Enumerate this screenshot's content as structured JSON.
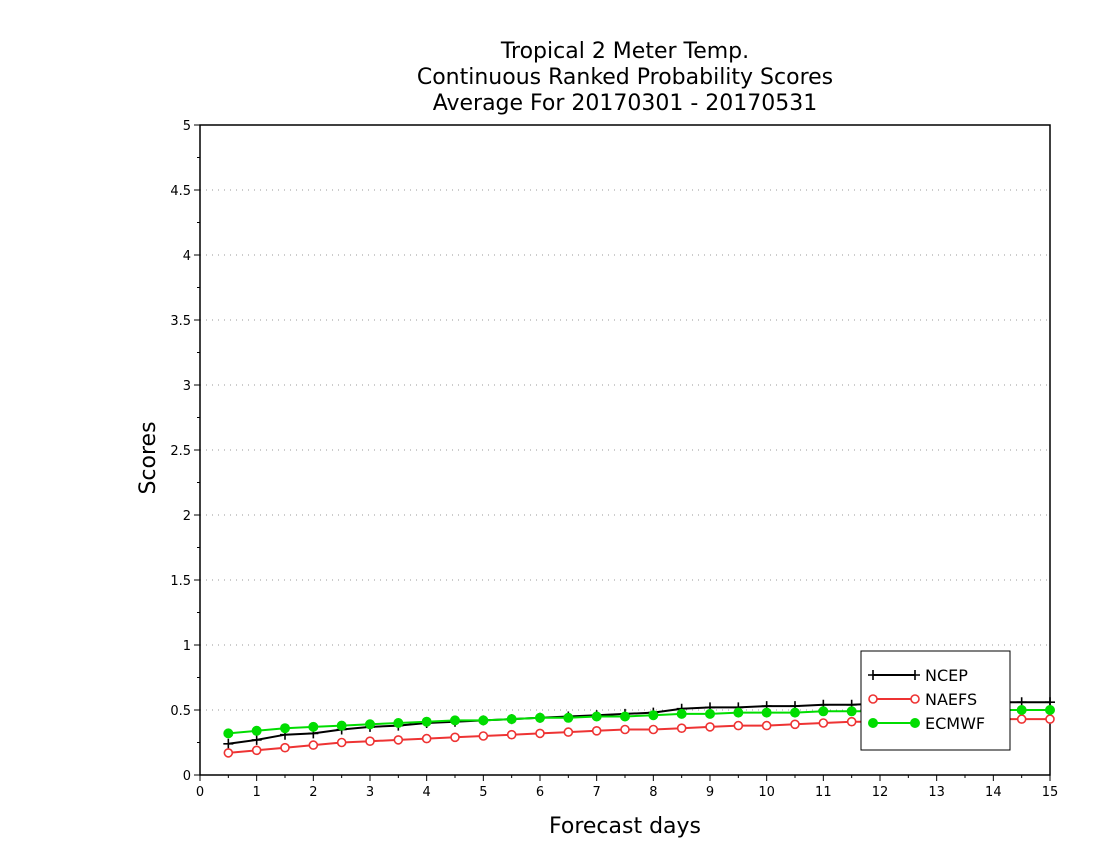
{
  "chart_data": {
    "type": "line",
    "title_lines": [
      "Tropical 2 Meter Temp.",
      "Continuous Ranked Probability Scores",
      "Average For 20170301 - 20170531"
    ],
    "xlabel": "Forecast days",
    "ylabel": "Scores",
    "xlim": [
      0,
      15
    ],
    "ylim": [
      0,
      5
    ],
    "xticks": [
      "0",
      "1",
      "2",
      "3",
      "4",
      "5",
      "6",
      "7",
      "8",
      "9",
      "10",
      "11",
      "12",
      "13",
      "14",
      "15"
    ],
    "yticks": [
      "0",
      "0.5",
      "1",
      "1.5",
      "2",
      "2.5",
      "3",
      "3.5",
      "4",
      "4.5",
      "5"
    ],
    "grid": "horizontal-dotted",
    "legend_position": "bottom-right",
    "x": [
      0.5,
      1,
      1.5,
      2,
      2.5,
      3,
      3.5,
      4,
      4.5,
      5,
      5.5,
      6,
      6.5,
      7,
      7.5,
      8,
      8.5,
      9,
      9.5,
      10,
      10.5,
      11,
      11.5,
      12,
      12.5,
      13,
      13.5,
      14,
      14.5,
      15
    ],
    "series": [
      {
        "name": "NCEP",
        "color": "#000000",
        "marker": "plus",
        "values": [
          0.24,
          0.27,
          0.31,
          0.32,
          0.35,
          0.37,
          0.38,
          0.4,
          0.41,
          0.42,
          0.43,
          0.44,
          0.45,
          0.46,
          0.47,
          0.48,
          0.51,
          0.52,
          0.52,
          0.53,
          0.53,
          0.54,
          0.54,
          0.55,
          0.55,
          0.55,
          0.56,
          0.56,
          0.56,
          0.56
        ]
      },
      {
        "name": "NAEFS",
        "color": "#ee3333",
        "marker": "open-circle",
        "values": [
          0.17,
          0.19,
          0.21,
          0.23,
          0.25,
          0.26,
          0.27,
          0.28,
          0.29,
          0.3,
          0.31,
          0.32,
          0.33,
          0.34,
          0.35,
          0.35,
          0.36,
          0.37,
          0.38,
          0.38,
          0.39,
          0.4,
          0.41,
          0.41,
          0.42,
          0.42,
          0.42,
          0.43,
          0.43,
          0.43
        ]
      },
      {
        "name": "ECMWF",
        "color": "#00dd00",
        "marker": "filled-circle",
        "values": [
          0.32,
          0.34,
          0.36,
          0.37,
          0.38,
          0.39,
          0.4,
          0.41,
          0.42,
          0.42,
          0.43,
          0.44,
          0.44,
          0.45,
          0.45,
          0.46,
          0.47,
          0.47,
          0.48,
          0.48,
          0.48,
          0.49,
          0.49,
          0.49,
          0.5,
          0.5,
          0.5,
          0.5,
          0.5,
          0.5
        ]
      }
    ]
  }
}
